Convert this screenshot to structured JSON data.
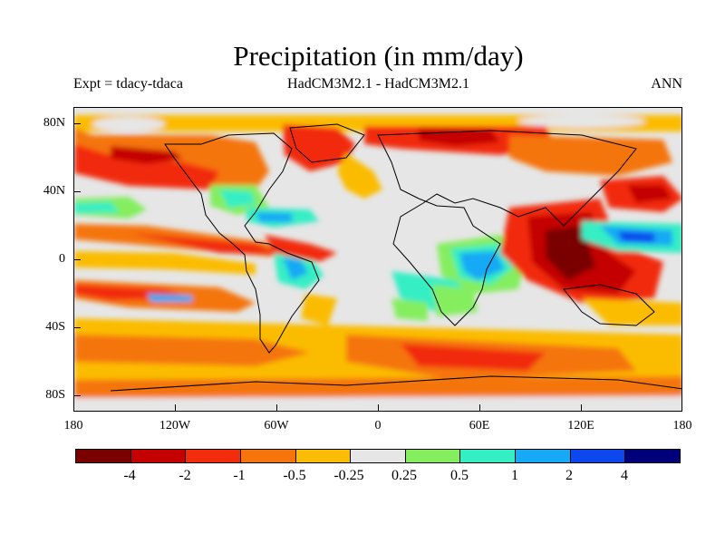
{
  "title": "Precipitation (in mm/day)",
  "experiment": "Expt = tdacy-tdaca",
  "models": "HadCM3M2.1 - HadCM3M2.1",
  "season": "ANN",
  "lat_labels": [
    "80N",
    "40N",
    "0",
    "40S",
    "80S"
  ],
  "lon_labels": [
    "180",
    "120W",
    "60W",
    "0",
    "60E",
    "120E",
    "180"
  ],
  "colorbar": {
    "colors": [
      "#7a0000",
      "#c40000",
      "#f22c0c",
      "#f5750c",
      "#fbbc04",
      "#e6e6e6",
      "#84ee5e",
      "#35eec4",
      "#17a9f5",
      "#0c48ee",
      "#00007a"
    ],
    "labels": [
      "-4",
      "-2",
      "-1",
      "-0.5",
      "-0.25",
      "0.25",
      "0.5",
      "1",
      "2",
      "4"
    ]
  }
}
